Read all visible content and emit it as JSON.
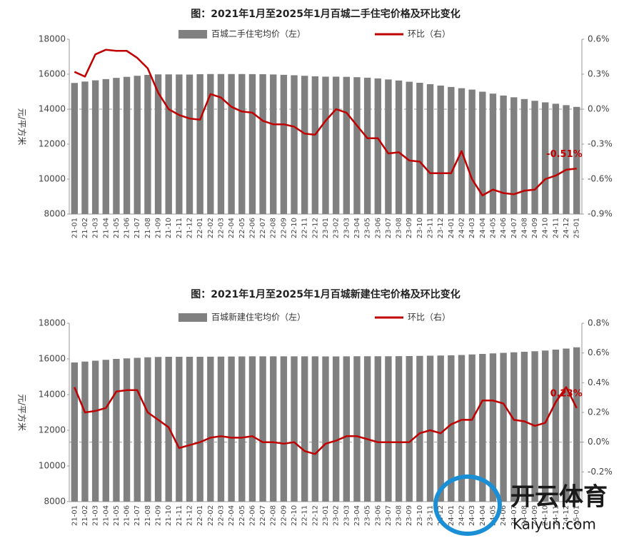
{
  "chart_data": [
    {
      "type": "bar_line",
      "title": "图：2021年1月至2025年1月百城二手住宅价格及环比变化",
      "ylabel": "元/平方米",
      "categories": [
        "21-01",
        "21-02",
        "21-03",
        "21-04",
        "21-05",
        "21-06",
        "21-07",
        "21-08",
        "21-09",
        "21-10",
        "21-11",
        "21-12",
        "22-01",
        "22-02",
        "22-03",
        "22-04",
        "22-05",
        "22-06",
        "22-07",
        "22-08",
        "22-09",
        "22-10",
        "22-11",
        "22-12",
        "23-01",
        "23-02",
        "23-03",
        "23-04",
        "23-05",
        "23-06",
        "23-07",
        "23-08",
        "23-09",
        "23-10",
        "23-11",
        "23-12",
        "24-01",
        "24-02",
        "24-03",
        "24-04",
        "24-05",
        "24-06",
        "24-07",
        "24-08",
        "24-09",
        "24-10",
        "24-11",
        "24-12",
        "25-01"
      ],
      "series": [
        {
          "name": "百城二手住宅均价（左）",
          "kind": "bar",
          "color": "#808080",
          "values": [
            15500,
            15580,
            15650,
            15720,
            15790,
            15850,
            15910,
            15960,
            15990,
            15990,
            15985,
            15980,
            16000,
            16010,
            16010,
            16010,
            16010,
            16005,
            16000,
            15985,
            15965,
            15940,
            15910,
            15880,
            15860,
            15860,
            15850,
            15830,
            15800,
            15760,
            15700,
            15640,
            15570,
            15510,
            15430,
            15350,
            15270,
            15200,
            15120,
            15000,
            14890,
            14780,
            14680,
            14580,
            14480,
            14390,
            14310,
            14230,
            14130
          ]
        },
        {
          "name": "环比（右）",
          "kind": "line",
          "axis": "y2",
          "color": "#c00000",
          "values": [
            0.32,
            0.28,
            0.47,
            0.51,
            0.5,
            0.5,
            0.44,
            0.35,
            0.14,
            0.0,
            -0.05,
            -0.08,
            -0.09,
            0.13,
            0.1,
            0.02,
            -0.02,
            -0.03,
            -0.1,
            -0.13,
            -0.13,
            -0.15,
            -0.21,
            -0.22,
            -0.1,
            0.0,
            -0.03,
            -0.14,
            -0.25,
            -0.25,
            -0.38,
            -0.37,
            -0.44,
            -0.45,
            -0.55,
            -0.55,
            -0.55,
            -0.36,
            -0.6,
            -0.74,
            -0.69,
            -0.72,
            -0.73,
            -0.7,
            -0.69,
            -0.6,
            -0.57,
            -0.52,
            -0.51
          ],
          "value_labels": [
            null,
            null,
            null,
            null,
            null,
            null,
            null,
            null,
            null,
            null,
            null,
            null,
            null,
            null,
            null,
            null,
            null,
            null,
            null,
            null,
            null,
            null,
            null,
            null,
            null,
            null,
            null,
            null,
            null,
            null,
            null,
            null,
            null,
            null,
            null,
            null,
            null,
            null,
            null,
            null,
            null,
            null,
            null,
            null,
            null,
            null,
            null,
            null,
            "-0.51%"
          ]
        }
      ],
      "ylim": [
        8000,
        18000
      ],
      "yticks": [
        8000,
        10000,
        12000,
        14000,
        16000,
        18000
      ],
      "y2lim": [
        -0.9,
        0.6
      ],
      "y2ticks": [
        {
          "value": -0.9,
          "label": "-0.9%"
        },
        {
          "value": -0.6,
          "label": "-0.6%"
        },
        {
          "value": -0.3,
          "label": "-0.3%"
        },
        {
          "value": 0,
          "label": "0.0%"
        },
        {
          "value": 0.3,
          "label": "0.3%"
        },
        {
          "value": 0.6,
          "label": "0.6%"
        }
      ],
      "y2_zero_line": true
    },
    {
      "type": "bar_line",
      "title": "图：2021年1月至2025年1月百城新建住宅价格及环比变化",
      "ylabel": "元/平方米",
      "categories": [
        "21-01",
        "21-02",
        "21-03",
        "21-04",
        "21-05",
        "21-06",
        "21-07",
        "21-08",
        "21-09",
        "21-10",
        "21-11",
        "21-12",
        "22-01",
        "22-02",
        "22-03",
        "22-04",
        "22-05",
        "22-06",
        "22-07",
        "22-08",
        "22-09",
        "22-10",
        "22-11",
        "22-12",
        "23-01",
        "23-02",
        "23-03",
        "23-04",
        "23-05",
        "23-06",
        "23-07",
        "23-08",
        "23-09",
        "23-10",
        "23-11",
        "23-12",
        "24-01",
        "24-02",
        "24-03",
        "24-04",
        "24-05",
        "24-06",
        "24-07",
        "24-08",
        "24-09",
        "24-10",
        "24-11",
        "24-12",
        "25-01"
      ],
      "series": [
        {
          "name": "百城新建住宅均价（左）",
          "kind": "bar",
          "color": "#808080",
          "values": [
            15800,
            15850,
            15900,
            15950,
            16000,
            16030,
            16060,
            16090,
            16110,
            16120,
            16120,
            16120,
            16120,
            16125,
            16130,
            16135,
            16140,
            16145,
            16145,
            16145,
            16145,
            16145,
            16145,
            16145,
            16140,
            16140,
            16145,
            16150,
            16150,
            16150,
            16150,
            16155,
            16160,
            16170,
            16180,
            16190,
            16200,
            16220,
            16250,
            16280,
            16310,
            16340,
            16370,
            16400,
            16430,
            16470,
            16520,
            16580,
            16650
          ]
        },
        {
          "name": "环比（右）",
          "kind": "line",
          "axis": "y2",
          "color": "#c00000",
          "values": [
            0.37,
            0.2,
            0.21,
            0.23,
            0.34,
            0.35,
            0.35,
            0.2,
            0.15,
            0.1,
            -0.04,
            -0.02,
            0.0,
            0.03,
            0.04,
            0.03,
            0.03,
            0.04,
            0.0,
            0.0,
            -0.01,
            0.0,
            -0.06,
            -0.08,
            -0.01,
            0.01,
            0.04,
            0.04,
            0.02,
            0.0,
            0.0,
            0.0,
            0.0,
            0.06,
            0.08,
            0.06,
            0.12,
            0.15,
            0.15,
            0.28,
            0.28,
            0.26,
            0.15,
            0.14,
            0.11,
            0.13,
            0.27,
            0.37,
            0.23
          ],
          "value_labels": [
            null,
            null,
            null,
            null,
            null,
            null,
            null,
            null,
            null,
            null,
            null,
            null,
            null,
            null,
            null,
            null,
            null,
            null,
            null,
            null,
            null,
            null,
            null,
            null,
            null,
            null,
            null,
            null,
            null,
            null,
            null,
            null,
            null,
            null,
            null,
            null,
            null,
            null,
            null,
            null,
            null,
            null,
            null,
            null,
            null,
            null,
            null,
            null,
            "0.23%"
          ]
        }
      ],
      "ylim": [
        8000,
        18000
      ],
      "yticks": [
        8000,
        10000,
        12000,
        14000,
        16000,
        18000
      ],
      "y2lim": [
        -0.4,
        0.8
      ],
      "y2ticks": [
        {
          "value": -0.2,
          "label": "-0.2%"
        },
        {
          "value": 0,
          "label": "0.0%"
        },
        {
          "value": 0.2,
          "label": "0.2%"
        },
        {
          "value": 0.4,
          "label": "0.4%"
        },
        {
          "value": 0.6,
          "label": "0.6%"
        },
        {
          "value": 0.8,
          "label": "0.8%"
        }
      ],
      "y2_zero_line": true
    }
  ],
  "watermark": {
    "brand": "开云体育",
    "site": "Kaiyun.com"
  }
}
